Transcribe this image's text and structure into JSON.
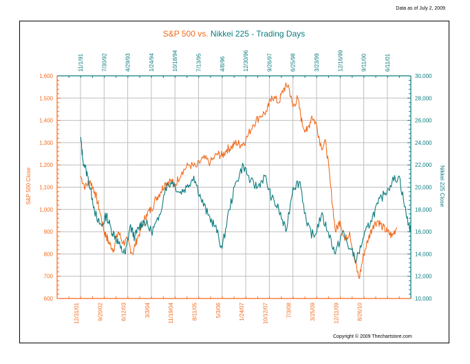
{
  "header": {
    "data_as_of": "Data as of July 2, 2009"
  },
  "footer": {
    "copyright": "Copyright © 2009 Thechartstore.com"
  },
  "colors": {
    "sp500": "#f26b1d",
    "nikkei": "#0b7b7d",
    "grid": "#bdbdbd",
    "frame": "#000000"
  },
  "chart_data": {
    "type": "line",
    "title_parts": [
      {
        "text": "S&P 500 vs. ",
        "series": "sp500"
      },
      {
        "text": "Nikkei 225 - Trading Days",
        "series": "nikkei"
      }
    ],
    "title": "S&P 500 vs. Nikkei 225 - Trading Days",
    "left_axis": {
      "label": "S&P 500 Close",
      "min": 600,
      "max": 1600,
      "step": 100,
      "ticks": [
        "600",
        "700",
        "800",
        "900",
        "1,000",
        "1,100",
        "1,200",
        "1,300",
        "1,400",
        "1,500",
        "1,600"
      ]
    },
    "right_axis": {
      "label": "Nikkei 225 Close",
      "min": 10000,
      "max": 30000,
      "step": 2000,
      "ticks": [
        "10,000",
        "12,000",
        "14,000",
        "16,000",
        "18,000",
        "20,000",
        "22,000",
        "24,000",
        "26,000",
        "28,000",
        "30,000"
      ]
    },
    "top_axis_dates_nikkei": [
      "11/1/91",
      "7/30/92",
      "4/29/93",
      "1/24/94",
      "10/18/94",
      "7/13/95",
      "4/8/96",
      "12/30/96",
      "9/26/97",
      "6/25/98",
      "3/23/99",
      "12/16/99",
      "9/11/00",
      "6/11/01"
    ],
    "bottom_axis_dates_sp500": [
      "12/31/01",
      "9/20/02",
      "6/12/03",
      "3/3/04",
      "11/19/04",
      "8/11/05",
      "5/3/06",
      "1/24/07",
      "10/12/07",
      "7/3/08",
      "3/25/09",
      "12/11/09",
      "8/26/10"
    ],
    "x_range": [
      0,
      14
    ],
    "series": [
      {
        "name": "S&P 500",
        "axis": "left",
        "color_key": "sp500",
        "x": [
          0,
          0.2,
          0.4,
          0.6,
          0.8,
          1.0,
          1.1,
          1.2,
          1.4,
          1.6,
          1.8,
          2.0,
          2.2,
          2.4,
          2.6,
          2.8,
          3.0,
          3.2,
          3.4,
          3.6,
          3.8,
          4.0,
          4.3,
          4.6,
          4.9,
          5.2,
          5.5,
          5.8,
          6.0,
          6.2,
          6.4,
          6.6,
          6.8,
          7.0,
          7.3,
          7.6,
          7.9,
          8.1,
          8.4,
          8.6,
          8.8,
          9.0,
          9.2,
          9.4,
          9.6,
          9.8,
          10.0,
          10.2,
          10.4,
          10.6,
          10.8,
          11.0,
          11.2,
          11.4,
          11.6,
          11.8,
          12.0,
          12.2,
          12.4,
          12.6,
          12.8,
          13.0,
          13.2,
          13.4
        ],
        "y": [
          1150,
          1100,
          1130,
          1080,
          1000,
          900,
          880,
          850,
          820,
          900,
          850,
          860,
          800,
          870,
          920,
          980,
          1000,
          1050,
          1080,
          1120,
          1130,
          1110,
          1170,
          1200,
          1190,
          1230,
          1210,
          1250,
          1240,
          1270,
          1280,
          1300,
          1290,
          1310,
          1380,
          1420,
          1440,
          1510,
          1480,
          1540,
          1560,
          1460,
          1500,
          1380,
          1350,
          1420,
          1380,
          1280,
          1300,
          1100,
          900,
          950,
          860,
          900,
          780,
          690,
          800,
          870,
          930,
          950,
          920,
          900,
          880,
          920
        ]
      },
      {
        "name": "Nikkei 225",
        "axis": "right",
        "color_key": "nikkei",
        "x": [
          0,
          0.1,
          0.3,
          0.5,
          0.7,
          0.9,
          1.1,
          1.3,
          1.5,
          1.7,
          1.9,
          2.1,
          2.3,
          2.5,
          2.7,
          3.0,
          3.3,
          3.6,
          3.9,
          4.2,
          4.5,
          4.8,
          5.1,
          5.4,
          5.7,
          6.0,
          6.3,
          6.6,
          6.9,
          7.2,
          7.5,
          7.8,
          8.1,
          8.4,
          8.7,
          9.0,
          9.3,
          9.6,
          9.9,
          10.2,
          10.5,
          10.8,
          11.1,
          11.4,
          11.7,
          12.0,
          12.3,
          12.6,
          12.9,
          13.2,
          13.5,
          13.8,
          14.0
        ],
        "y": [
          24500,
          22500,
          21000,
          19000,
          17000,
          16500,
          17500,
          16200,
          15500,
          14500,
          14000,
          16500,
          15500,
          16500,
          17000,
          16000,
          17000,
          20000,
          20500,
          19500,
          20000,
          21000,
          19000,
          17500,
          16500,
          14500,
          18000,
          20500,
          22000,
          20500,
          20000,
          21000,
          19000,
          18000,
          16000,
          20000,
          20500,
          16500,
          15500,
          17500,
          16000,
          14000,
          16000,
          14500,
          13500,
          15500,
          17000,
          18500,
          19500,
          20500,
          21000,
          17500,
          16000
        ]
      }
    ]
  }
}
